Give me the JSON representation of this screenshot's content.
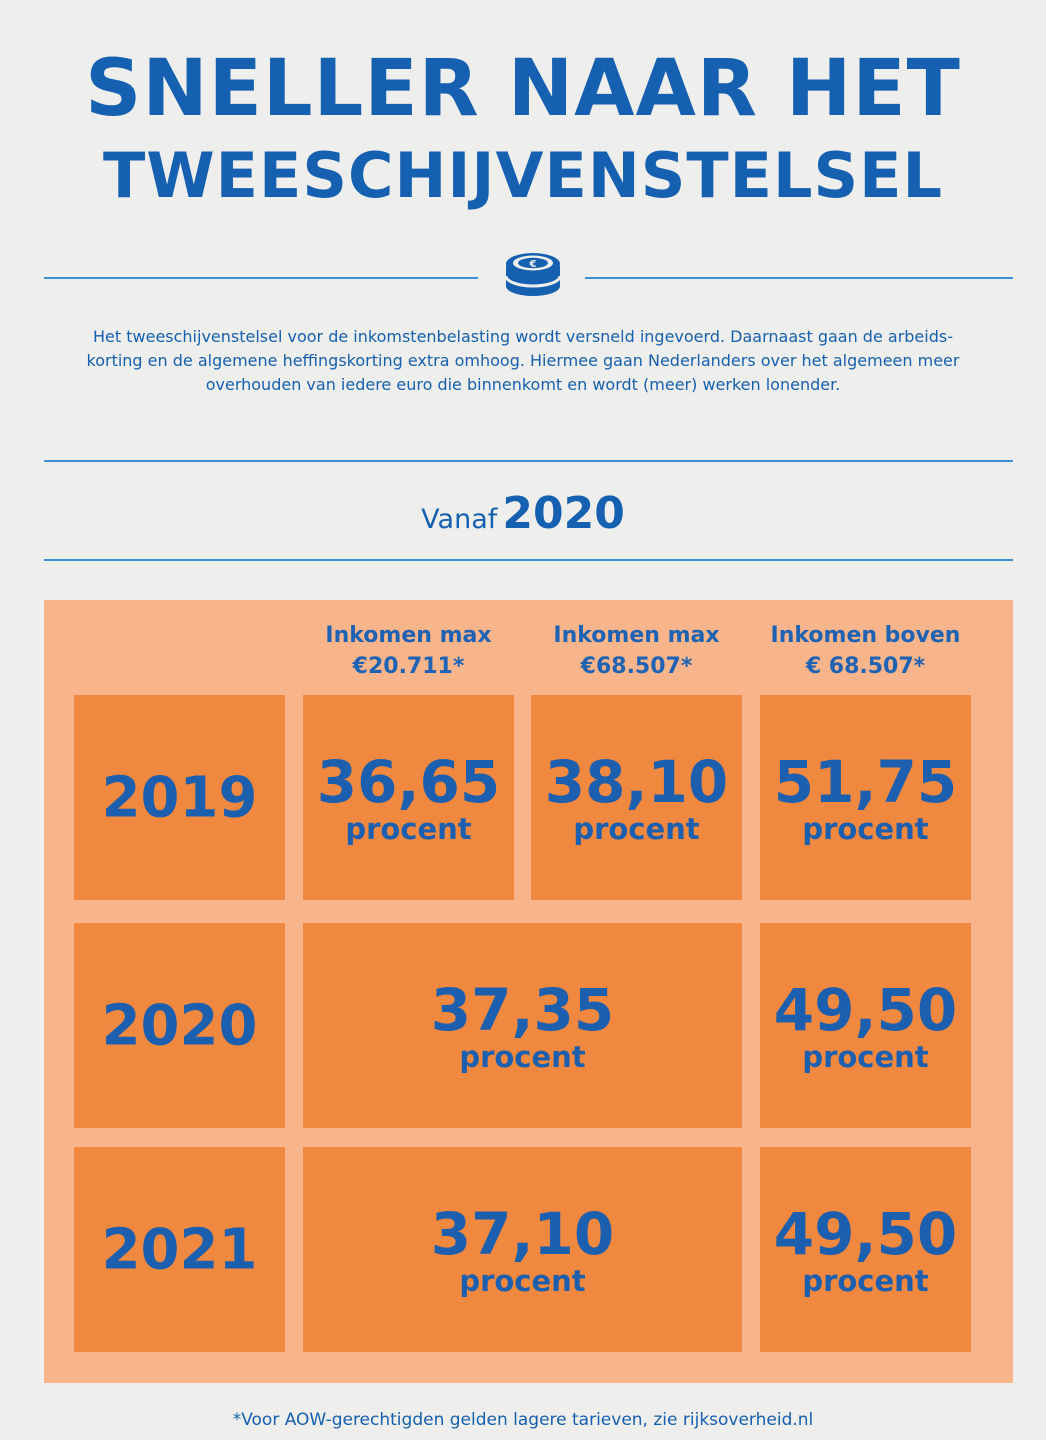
{
  "header": {
    "title_line1": "SNELLER NAAR HET",
    "title_line2": "TWEESCHIJVENSTELSEL"
  },
  "intro": {
    "line1": "Het tweeschijvenstelsel voor de inkomstenbelasting wordt versneld ingevoerd. Daarnaast gaan de arbeids-",
    "line2": "korting en de algemene heffingskorting extra omhoog. Hiermee gaan Nederlanders over het algemeen meer",
    "line3": "overhouden van iedere euro die binnenkomt en wordt (meer) werken lonender."
  },
  "vanaf": {
    "label": "Vanaf",
    "year": "2020"
  },
  "table": {
    "columns": [
      {
        "line1": "Inkomen max",
        "line2": "€20.711*"
      },
      {
        "line1": "Inkomen max",
        "line2": "€68.507*"
      },
      {
        "line1": "Inkomen boven",
        "line2": "€ 68.507*"
      }
    ],
    "rows": [
      {
        "year": "2019",
        "rates": [
          "36,65",
          "38,10",
          "51,75"
        ]
      },
      {
        "year": "2020",
        "rates": [
          "37,35",
          "49,50"
        ]
      },
      {
        "year": "2021",
        "rates": [
          "37,10",
          "49,50"
        ]
      }
    ],
    "unit": "procent"
  },
  "footnote": "*Voor AOW-gerechtigden gelden lagere tarieven, zie rijksoverheid.nl",
  "colors": {
    "blue": "#1560b0",
    "panel": "#f8b48a",
    "cell": "#f08840",
    "background": "#eeeeec"
  }
}
